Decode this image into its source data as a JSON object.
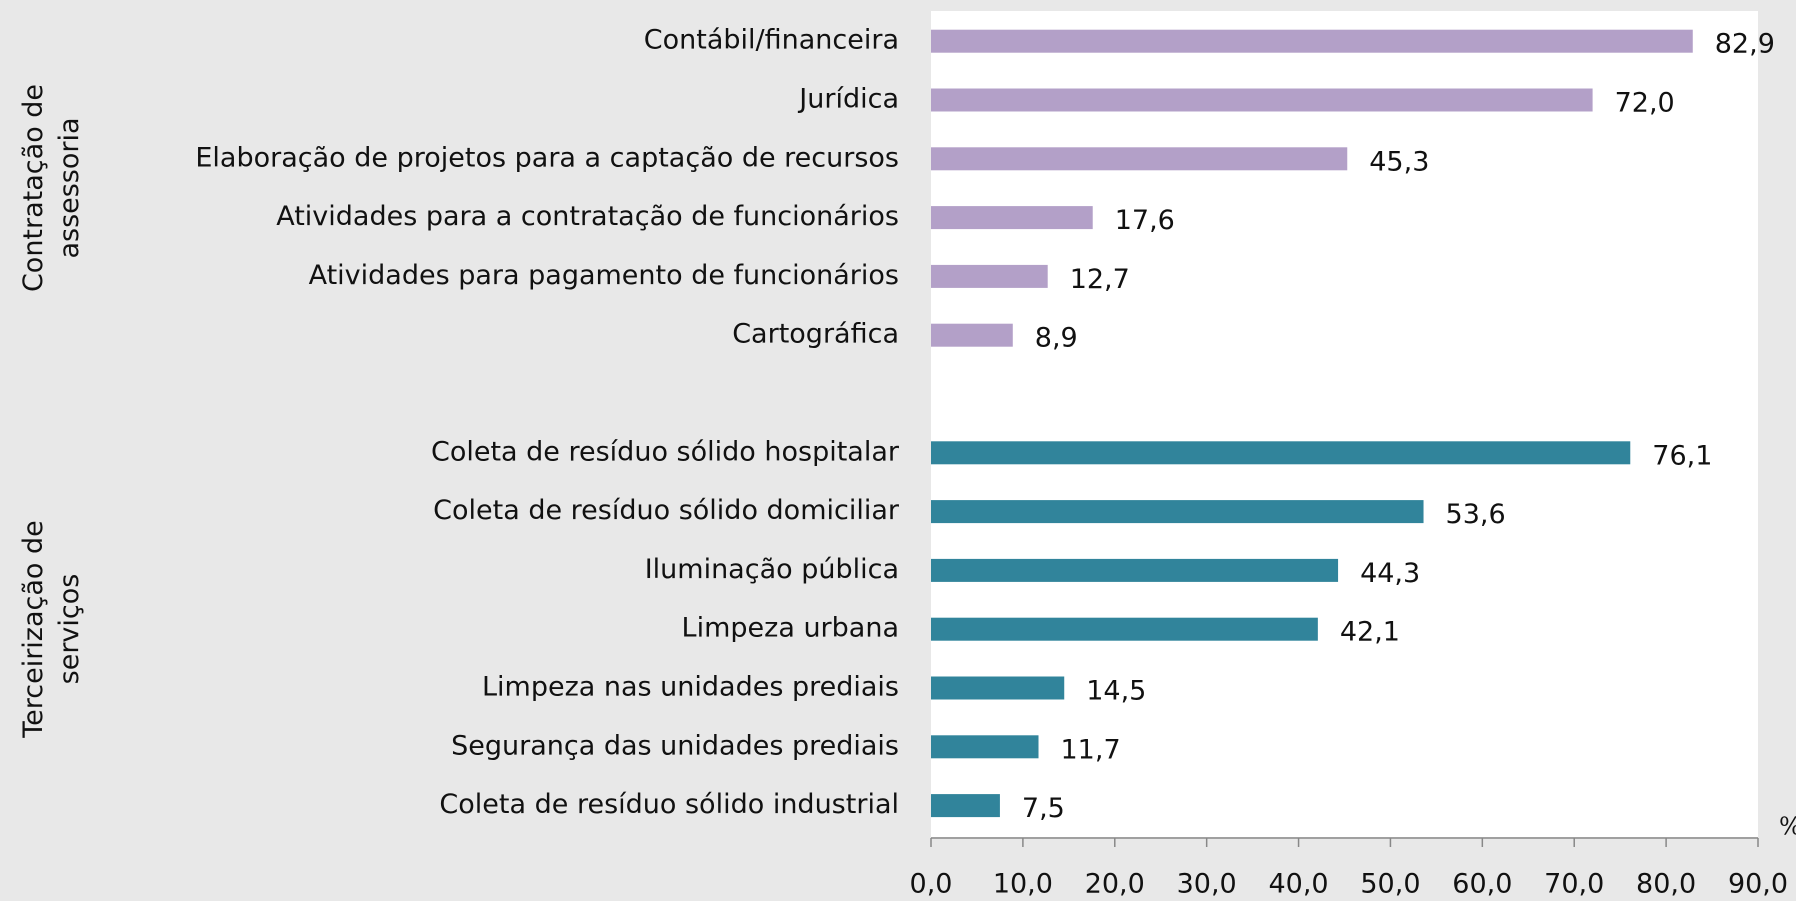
{
  "chart_data": {
    "type": "bar",
    "orientation": "horizontal",
    "x_unit_label": "%",
    "xlim": [
      0,
      90
    ],
    "xticks": [
      {
        "value": 0,
        "label": "0,0"
      },
      {
        "value": 10,
        "label": "10,0"
      },
      {
        "value": 20,
        "label": "20,0"
      },
      {
        "value": 30,
        "label": "30,0"
      },
      {
        "value": 40,
        "label": "40,0"
      },
      {
        "value": 50,
        "label": "50,0"
      },
      {
        "value": 60,
        "label": "60,0"
      },
      {
        "value": 70,
        "label": "70,0"
      },
      {
        "value": 80,
        "label": "80,0"
      },
      {
        "value": 90,
        "label": "90,0"
      }
    ],
    "series": [
      {
        "name": "Contratação de assessoria",
        "color": "#b3a0c8",
        "categories": [
          "Contábil/financeira",
          "Jurídica",
          "Elaboração de projetos para a captação de recursos",
          "Atividades para a contratação de funcionários",
          "Atividades para pagamento de funcionários",
          "Cartográfica"
        ],
        "values": [
          82.9,
          72.0,
          45.3,
          17.6,
          12.7,
          8.9
        ],
        "value_labels": [
          "82,9",
          "72,0",
          "45,3",
          "17,6",
          "12,7",
          "8,9"
        ]
      },
      {
        "name": "Terceirização de serviços",
        "color": "#31849b",
        "categories": [
          "Coleta de resíduo sólido hospitalar",
          "Coleta de resíduo sólido domiciliar",
          "Iluminação pública",
          "Limpeza urbana",
          "Limpeza nas unidades prediais",
          "Segurança das unidades prediais",
          "Coleta de resíduo sólido industrial"
        ],
        "values": [
          76.1,
          53.6,
          44.3,
          42.1,
          14.5,
          11.7,
          7.5
        ],
        "value_labels": [
          "76,1",
          "53,6",
          "44,3",
          "42,1",
          "14,5",
          "11,7",
          "7,5"
        ]
      }
    ]
  }
}
